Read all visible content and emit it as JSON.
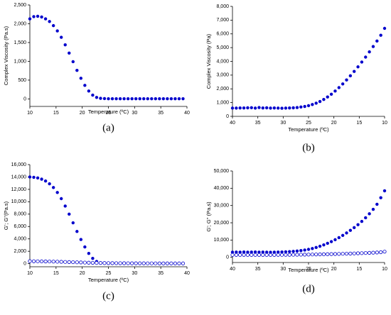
{
  "chart_data": [
    {
      "type": "scatter",
      "label": "(a)",
      "xlabel": "Temperature (ºC)",
      "ylabel": "Complex Viscosity (Pa.s)",
      "x": [
        10,
        10.75,
        11.5,
        12.25,
        13,
        13.75,
        14.5,
        15.25,
        16,
        16.75,
        17.5,
        18.25,
        19,
        19.75,
        20.5,
        21.25,
        22,
        22.75,
        23.5,
        24.25,
        25,
        25.75,
        26.5,
        27.25,
        28,
        28.75,
        29.5,
        30.25,
        31,
        31.75,
        32.5,
        33.25,
        34,
        34.75,
        35.5,
        36.25,
        37,
        37.75,
        38.5,
        39.25
      ],
      "series": [
        {
          "color": "#0000cc",
          "marker": "filled",
          "values": [
            2130,
            2190,
            2200,
            2180,
            2130,
            2060,
            1950,
            1810,
            1640,
            1440,
            1220,
            990,
            760,
            550,
            360,
            210,
            100,
            40,
            15,
            8,
            5,
            5,
            5,
            5,
            5,
            5,
            5,
            5,
            5,
            5,
            5,
            5,
            5,
            5,
            5,
            5,
            5,
            5,
            5,
            5
          ]
        }
      ],
      "xlim": [
        10,
        40
      ],
      "xticks": [
        10,
        15,
        20,
        25,
        30,
        35,
        40
      ],
      "ylim": [
        -200,
        2500
      ],
      "yticks": [
        0,
        500,
        {
          "value": 1000,
          "label": "1,000"
        },
        {
          "value": 1500,
          "label": "1,500"
        },
        {
          "value": 2000,
          "label": "2,000"
        },
        {
          "value": 2500,
          "label": "2,500"
        }
      ]
    },
    {
      "type": "scatter",
      "label": "(b)",
      "xlabel": "Temperature (ºC)",
      "ylabel": "Complex Viscosity (Pa)",
      "x": [
        40,
        39.25,
        38.5,
        37.75,
        37,
        36.25,
        35.5,
        34.75,
        34,
        33.25,
        32.5,
        31.75,
        31,
        30.25,
        29.5,
        28.75,
        28,
        27.25,
        26.5,
        25.75,
        25,
        24.25,
        23.5,
        22.75,
        22,
        21.25,
        20.5,
        19.75,
        19,
        18.25,
        17.5,
        16.75,
        16,
        15.25,
        14.5,
        13.75,
        13,
        12.25,
        11.5,
        10.75,
        10
      ],
      "series": [
        {
          "color": "#0000cc",
          "marker": "filled",
          "values": [
            600,
            600,
            610,
            610,
            620,
            630,
            600,
            640,
            610,
            620,
            600,
            610,
            600,
            590,
            600,
            610,
            620,
            640,
            680,
            720,
            780,
            860,
            960,
            1080,
            1230,
            1410,
            1610,
            1840,
            2090,
            2360,
            2650,
            2950,
            3270,
            3600,
            3950,
            4310,
            4690,
            5080,
            5480,
            5900,
            6400
          ]
        }
      ],
      "xlim": [
        40,
        10
      ],
      "xticks": [
        40,
        35,
        30,
        25,
        20,
        15,
        10
      ],
      "ylim": [
        0,
        8000
      ],
      "yticks": [
        0,
        {
          "value": 1000,
          "label": "1,000"
        },
        {
          "value": 2000,
          "label": "2,000"
        },
        {
          "value": 3000,
          "label": "3,000"
        },
        {
          "value": 4000,
          "label": "4,000"
        },
        {
          "value": 5000,
          "label": "5,000"
        },
        {
          "value": 6000,
          "label": "6,000"
        },
        {
          "value": 7000,
          "label": "7,000"
        },
        {
          "value": 8000,
          "label": "8,000"
        }
      ]
    },
    {
      "type": "scatter",
      "label": "(c)",
      "xlabel": "Temperature (ºC)",
      "ylabel": "G'; G''(Pa.s)",
      "x": [
        10,
        10.75,
        11.5,
        12.25,
        13,
        13.75,
        14.5,
        15.25,
        16,
        16.75,
        17.5,
        18.25,
        19,
        19.75,
        20.5,
        21.25,
        22,
        22.75,
        23.5,
        24.25,
        25,
        25.75,
        26.5,
        27.25,
        28,
        28.75,
        29.5,
        30.25,
        31,
        31.75,
        32.5,
        33.25,
        34,
        34.75,
        35.5,
        36.25,
        37,
        37.75,
        38.5,
        39.25
      ],
      "series": [
        {
          "color": "#0000cc",
          "marker": "filled",
          "values": [
            14000,
            13950,
            13850,
            13650,
            13350,
            12900,
            12300,
            11500,
            10500,
            9300,
            8000,
            6600,
            5200,
            3900,
            2700,
            1650,
            850,
            350,
            150,
            80,
            50,
            50,
            50,
            50,
            50,
            50,
            50,
            50,
            50,
            50,
            50,
            50,
            50,
            50,
            50,
            50,
            50,
            50,
            50,
            50
          ]
        },
        {
          "color": "#0000cc",
          "marker": "open",
          "values": [
            400,
            390,
            380,
            370,
            360,
            350,
            340,
            320,
            300,
            280,
            260,
            240,
            220,
            200,
            180,
            160,
            140,
            120,
            110,
            100,
            90,
            85,
            80,
            75,
            70,
            65,
            60,
            60,
            55,
            55,
            50,
            50,
            50,
            45,
            45,
            45,
            40,
            40,
            40,
            40
          ]
        }
      ],
      "xlim": [
        10,
        40
      ],
      "xticks": [
        10,
        15,
        20,
        25,
        30,
        35,
        40
      ],
      "ylim": [
        -500,
        16000
      ],
      "yticks": [
        0,
        {
          "value": 2000,
          "label": "2,000"
        },
        {
          "value": 4000,
          "label": "4,000"
        },
        {
          "value": 6000,
          "label": "6,000"
        },
        {
          "value": 8000,
          "label": "8,000"
        },
        {
          "value": 10000,
          "label": "10,000"
        },
        {
          "value": 12000,
          "label": "12,000"
        },
        {
          "value": 14000,
          "label": "14,000"
        },
        {
          "value": 16000,
          "label": "16,000"
        }
      ]
    },
    {
      "type": "scatter",
      "label": "(d)",
      "xlabel": "Temperature (ºC)",
      "ylabel": "G'; G'' (Pa.s)",
      "x": [
        40,
        39.25,
        38.5,
        37.75,
        37,
        36.25,
        35.5,
        34.75,
        34,
        33.25,
        32.5,
        31.75,
        31,
        30.25,
        29.5,
        28.75,
        28,
        27.25,
        26.5,
        25.75,
        25,
        24.25,
        23.5,
        22.75,
        22,
        21.25,
        20.5,
        19.75,
        19,
        18.25,
        17.5,
        16.75,
        16,
        15.25,
        14.5,
        13.75,
        13,
        12.25,
        11.5,
        10.75,
        10
      ],
      "series": [
        {
          "color": "#0000cc",
          "marker": "filled",
          "values": [
            3000,
            3050,
            3000,
            3100,
            3000,
            3050,
            3100,
            3000,
            3050,
            3000,
            2950,
            3000,
            3050,
            3100,
            3200,
            3300,
            3450,
            3650,
            3900,
            4200,
            4600,
            5100,
            5700,
            6400,
            7200,
            8100,
            9100,
            10200,
            11400,
            12700,
            14100,
            15600,
            17200,
            18900,
            20800,
            22900,
            25200,
            27800,
            30700,
            34500,
            38500
          ]
        },
        {
          "color": "#0000cc",
          "marker": "open",
          "values": [
            1400,
            1420,
            1400,
            1410,
            1400,
            1420,
            1400,
            1410,
            1420,
            1400,
            1410,
            1420,
            1430,
            1440,
            1450,
            1470,
            1490,
            1510,
            1540,
            1570,
            1600,
            1640,
            1680,
            1720,
            1770,
            1820,
            1870,
            1930,
            1990,
            2050,
            2120,
            2190,
            2260,
            2340,
            2420,
            2510,
            2600,
            2700,
            2800,
            2950,
            3300
          ]
        }
      ],
      "xlim": [
        40,
        10
      ],
      "xticks": [
        40,
        35,
        30,
        25,
        20,
        15,
        10
      ],
      "ylim": [
        -3000,
        50000
      ],
      "yticks": [
        0,
        {
          "value": 10000,
          "label": "10,000"
        },
        {
          "value": 20000,
          "label": "20,000"
        },
        {
          "value": 30000,
          "label": "30,000"
        },
        {
          "value": 40000,
          "label": "40,000"
        },
        {
          "value": 50000,
          "label": "50,000"
        }
      ]
    }
  ]
}
